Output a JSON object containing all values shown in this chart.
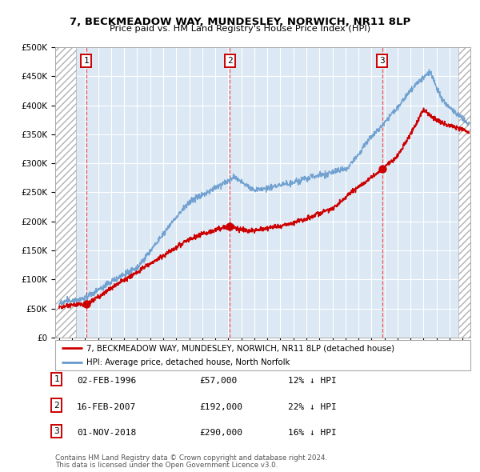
{
  "title1": "7, BECKMEADOW WAY, MUNDESLEY, NORWICH, NR11 8LP",
  "title2": "Price paid vs. HM Land Registry's House Price Index (HPI)",
  "ylim": [
    0,
    500000
  ],
  "yticks": [
    0,
    50000,
    100000,
    150000,
    200000,
    250000,
    300000,
    350000,
    400000,
    450000,
    500000
  ],
  "ytick_labels": [
    "£0",
    "£50K",
    "£100K",
    "£150K",
    "£200K",
    "£250K",
    "£300K",
    "£350K",
    "£400K",
    "£450K",
    "£500K"
  ],
  "xlim_start": 1993.7,
  "xlim_end": 2025.6,
  "xticks": [
    1994,
    1995,
    1996,
    1997,
    1998,
    1999,
    2000,
    2001,
    2002,
    2003,
    2004,
    2005,
    2006,
    2007,
    2008,
    2009,
    2010,
    2011,
    2012,
    2013,
    2014,
    2015,
    2016,
    2017,
    2018,
    2019,
    2020,
    2021,
    2022,
    2023,
    2024,
    2025
  ],
  "background_color": "#ffffff",
  "plot_bg_color": "#dce9f5",
  "grid_color": "#ffffff",
  "red_line_color": "#cc0000",
  "blue_line_color": "#6699cc",
  "sale1_x": 1996.09,
  "sale1_y": 57000,
  "sale2_x": 2007.12,
  "sale2_y": 192000,
  "sale3_x": 2018.83,
  "sale3_y": 290000,
  "legend_label1": "7, BECKMEADOW WAY, MUNDESLEY, NORWICH, NR11 8LP (detached house)",
  "legend_label2": "HPI: Average price, detached house, North Norfolk",
  "table_data": [
    {
      "num": "1",
      "date": "02-FEB-1996",
      "price": "£57,000",
      "hpi": "12% ↓ HPI"
    },
    {
      "num": "2",
      "date": "16-FEB-2007",
      "price": "£192,000",
      "hpi": "22% ↓ HPI"
    },
    {
      "num": "3",
      "date": "01-NOV-2018",
      "price": "£290,000",
      "hpi": "16% ↓ HPI"
    }
  ],
  "footer1": "Contains HM Land Registry data © Crown copyright and database right 2024.",
  "footer2": "This data is licensed under the Open Government Licence v3.0."
}
